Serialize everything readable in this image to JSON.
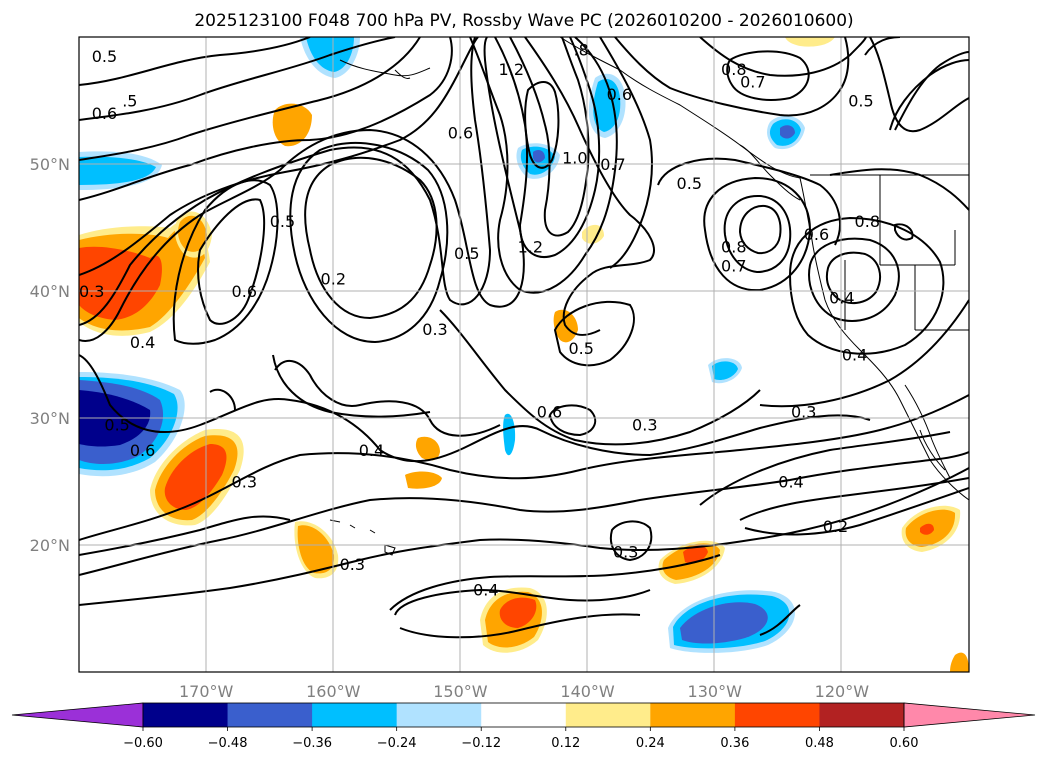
{
  "chart_data": {
    "type": "contour-map",
    "title": "2025123100 F048 700 hPa PV, Rossby Wave PC (2026010200 - 2026010600)",
    "x_ticks": [
      {
        "lon": -170,
        "label": "170°W"
      },
      {
        "lon": -160,
        "label": "160°W"
      },
      {
        "lon": -150,
        "label": "150°W"
      },
      {
        "lon": -140,
        "label": "140°W"
      },
      {
        "lon": -130,
        "label": "130°W"
      },
      {
        "lon": -120,
        "label": "120°W"
      }
    ],
    "y_ticks": [
      {
        "lat": 20,
        "label": "20°N"
      },
      {
        "lat": 30,
        "label": "30°N"
      },
      {
        "lat": 40,
        "label": "40°N"
      },
      {
        "lat": 50,
        "label": "50°N"
      }
    ],
    "lon_range": [
      -180,
      -110
    ],
    "lat_range": [
      10,
      60
    ],
    "colorbar": {
      "levels": [
        "−0.60",
        "−0.48",
        "−0.36",
        "−0.24",
        "−0.12",
        "0.12",
        "0.24",
        "0.36",
        "0.48",
        "0.60"
      ],
      "colors": [
        "#9b30d8",
        "#00008b",
        "#3a5fcd",
        "#00bfff",
        "#b0e2ff",
        "#ffffff",
        "#ffec8b",
        "#ffa500",
        "#ff4500",
        "#b22222",
        "#ff88aa"
      ]
    },
    "contour_labels": [
      {
        "text": "0.5",
        "lon": -178,
        "lat": 58.5
      },
      {
        "text": "0.6",
        "lon": -178,
        "lat": 54
      },
      {
        "text": ".5",
        "lon": -176,
        "lat": 55
      },
      {
        "text": "0.5",
        "lon": -164,
        "lat": 45.5
      },
      {
        "text": "0.6",
        "lon": -167,
        "lat": 40
      },
      {
        "text": "0.2",
        "lon": -160,
        "lat": 41
      },
      {
        "text": "0.3",
        "lon": -179,
        "lat": 40
      },
      {
        "text": "0.4",
        "lon": -175,
        "lat": 36
      },
      {
        "text": "0.5",
        "lon": -177,
        "lat": 29.5
      },
      {
        "text": "0.6",
        "lon": -175,
        "lat": 27.5
      },
      {
        "text": "0.3",
        "lon": -167,
        "lat": 25
      },
      {
        "text": "0.4",
        "lon": -157,
        "lat": 27.5
      },
      {
        "text": "0.3",
        "lon": -158.5,
        "lat": 18.5
      },
      {
        "text": "0.3",
        "lon": -152,
        "lat": 37
      },
      {
        "text": "0.5",
        "lon": -149.5,
        "lat": 43
      },
      {
        "text": "0.6",
        "lon": -150,
        "lat": 52.5
      },
      {
        "text": "1.2",
        "lon": -146,
        "lat": 57.5
      },
      {
        "text": ".8",
        "lon": -140.5,
        "lat": 59
      },
      {
        "text": "1.0",
        "lon": -141,
        "lat": 50.5
      },
      {
        "text": "1.2",
        "lon": -144.5,
        "lat": 43.5
      },
      {
        "text": "0.7",
        "lon": -138,
        "lat": 50
      },
      {
        "text": "0.6",
        "lon": -137.5,
        "lat": 55.5
      },
      {
        "text": "0.8",
        "lon": -128.5,
        "lat": 57.5
      },
      {
        "text": "0.7",
        "lon": -127,
        "lat": 56.5
      },
      {
        "text": "0.5",
        "lon": -118.5,
        "lat": 55
      },
      {
        "text": "0.5",
        "lon": -132,
        "lat": 48.5
      },
      {
        "text": "0.6",
        "lon": -122,
        "lat": 44.5
      },
      {
        "text": "0.8",
        "lon": -118,
        "lat": 45.5
      },
      {
        "text": "0.8",
        "lon": -128.5,
        "lat": 43.5
      },
      {
        "text": "0.7",
        "lon": -128.5,
        "lat": 42
      },
      {
        "text": "0.4",
        "lon": -120,
        "lat": 39.5
      },
      {
        "text": "0.4",
        "lon": -119,
        "lat": 35
      },
      {
        "text": "0.5",
        "lon": -140.5,
        "lat": 35.5
      },
      {
        "text": "0.6",
        "lon": -143,
        "lat": 30.5
      },
      {
        "text": "0.3",
        "lon": -135.5,
        "lat": 29.5
      },
      {
        "text": "0.3",
        "lon": -123,
        "lat": 30.5
      },
      {
        "text": "0.4",
        "lon": -124,
        "lat": 25
      },
      {
        "text": "0.2",
        "lon": -120.5,
        "lat": 21.5
      },
      {
        "text": "0.3",
        "lon": -137,
        "lat": 19.5
      },
      {
        "text": "0.4",
        "lon": -148,
        "lat": 16.5
      }
    ]
  }
}
